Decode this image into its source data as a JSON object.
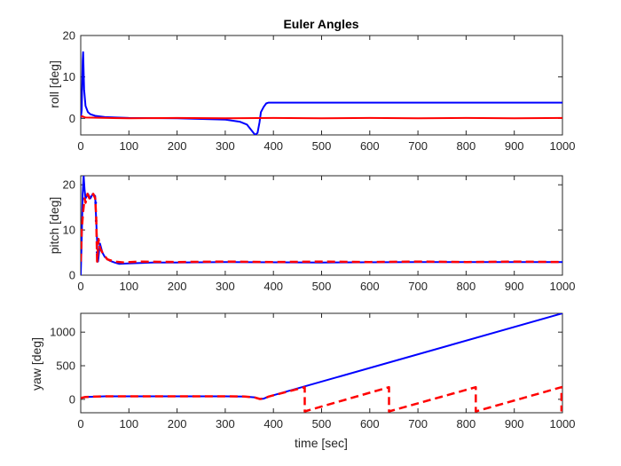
{
  "chart_data": [
    {
      "type": "line",
      "title": "Euler Angles",
      "xlabel": "",
      "ylabel": "roll [deg]",
      "xlim": [
        0,
        1000
      ],
      "ylim": [
        -4,
        20
      ],
      "xticks": [
        0,
        100,
        200,
        300,
        400,
        500,
        600,
        700,
        800,
        900,
        1000
      ],
      "xtick_labels": [
        "0",
        "100",
        "200",
        "300",
        "400",
        "500",
        "600",
        "700",
        "800",
        "900",
        "1000"
      ],
      "yticks": [
        0,
        10,
        20
      ],
      "ytick_labels": [
        "0",
        "10",
        "20"
      ],
      "grid": false,
      "legend": "none",
      "series": [
        {
          "color": "#0000ff",
          "style": "solid",
          "x": [
            0,
            2,
            3,
            4,
            5,
            7,
            10,
            15,
            20,
            30,
            50,
            100,
            200,
            300,
            330,
            345,
            355,
            362,
            367,
            371,
            374,
            380,
            385,
            390,
            1000
          ],
          "y": [
            0,
            2,
            8,
            14,
            16,
            7,
            3,
            1.5,
            1,
            0.6,
            0.3,
            0.1,
            0,
            -0.3,
            -0.8,
            -1.5,
            -3,
            -4,
            -3.5,
            -1,
            1.5,
            2.8,
            3.6,
            3.8,
            3.8
          ]
        },
        {
          "color": "#ff0000",
          "style": "solid",
          "x": [
            0,
            3,
            10,
            100,
            200,
            300,
            400,
            500,
            600,
            700,
            800,
            900,
            1000
          ],
          "y": [
            0.3,
            0.5,
            0.2,
            0,
            0.1,
            0,
            0.1,
            0,
            0.1,
            0,
            0.1,
            0,
            0.1
          ]
        }
      ]
    },
    {
      "type": "line",
      "title": "",
      "xlabel": "",
      "ylabel": "pitch [deg]",
      "xlim": [
        0,
        1000
      ],
      "ylim": [
        0,
        22
      ],
      "xticks": [
        0,
        100,
        200,
        300,
        400,
        500,
        600,
        700,
        800,
        900,
        1000
      ],
      "xtick_labels": [
        "0",
        "100",
        "200",
        "300",
        "400",
        "500",
        "600",
        "700",
        "800",
        "900",
        "1000"
      ],
      "yticks": [
        0,
        10,
        20
      ],
      "ytick_labels": [
        "0",
        "10",
        "20"
      ],
      "grid": false,
      "legend": "none",
      "series": [
        {
          "color": "#0000ff",
          "style": "solid",
          "x": [
            0,
            2,
            4,
            6,
            8,
            10,
            15,
            20,
            25,
            30,
            33,
            36,
            40,
            45,
            50,
            60,
            70,
            80,
            100,
            150,
            200,
            300,
            500,
            700,
            1000
          ],
          "y": [
            0,
            8,
            18,
            22,
            19,
            17,
            18,
            17,
            18,
            17.5,
            10,
            3,
            7,
            5,
            4,
            3.2,
            2.8,
            2.5,
            2.6,
            2.8,
            2.8,
            2.9,
            2.8,
            2.9,
            2.9
          ],
          "scatter_x": [
            31,
            32,
            34,
            35
          ],
          "scatter_y": [
            16,
            12,
            5,
            4
          ]
        },
        {
          "color": "#ff0000",
          "style": "dashed",
          "x": [
            0,
            2,
            5,
            8,
            10,
            14,
            18,
            22,
            26,
            30,
            32,
            34,
            37,
            40,
            45,
            55,
            70,
            90,
            120,
            200,
            300,
            400,
            500,
            600,
            700,
            800,
            900,
            1000
          ],
          "y": [
            3,
            10,
            14,
            17,
            16,
            18,
            17,
            17,
            18,
            17,
            13,
            3,
            8,
            6,
            5,
            3.5,
            3,
            2.8,
            3,
            2.9,
            3,
            2.9,
            3,
            2.9,
            3,
            2.9,
            3,
            2.9
          ]
        }
      ]
    },
    {
      "type": "line",
      "title": "",
      "xlabel": "time [sec]",
      "ylabel": "yaw [deg]",
      "xlim": [
        0,
        1000
      ],
      "ylim": [
        -200,
        1280
      ],
      "xticks": [
        0,
        100,
        200,
        300,
        400,
        500,
        600,
        700,
        800,
        900,
        1000
      ],
      "xtick_labels": [
        "0",
        "100",
        "200",
        "300",
        "400",
        "500",
        "600",
        "700",
        "800",
        "900",
        "1000"
      ],
      "yticks": [
        0,
        500,
        1000
      ],
      "ytick_labels": [
        "0",
        "500",
        "1000"
      ],
      "grid": false,
      "legend": "none",
      "series": [
        {
          "color": "#0000ff",
          "style": "solid",
          "x": [
            0,
            10,
            50,
            100,
            200,
            300,
            340,
            360,
            372,
            380,
            390,
            1000
          ],
          "y": [
            20,
            35,
            45,
            45,
            45,
            45,
            42,
            30,
            5,
            10,
            40,
            1280
          ]
        },
        {
          "color": "#ff0000",
          "style": "dashed",
          "x": [
            0,
            10,
            50,
            100,
            200,
            300,
            340,
            360,
            372,
            380,
            390,
            465,
            465,
            640,
            640,
            820,
            820,
            998,
            998
          ],
          "y": [
            20,
            35,
            45,
            45,
            45,
            45,
            42,
            30,
            5,
            10,
            40,
            180,
            -180,
            180,
            -180,
            180,
            -180,
            180,
            -180
          ]
        }
      ]
    }
  ]
}
